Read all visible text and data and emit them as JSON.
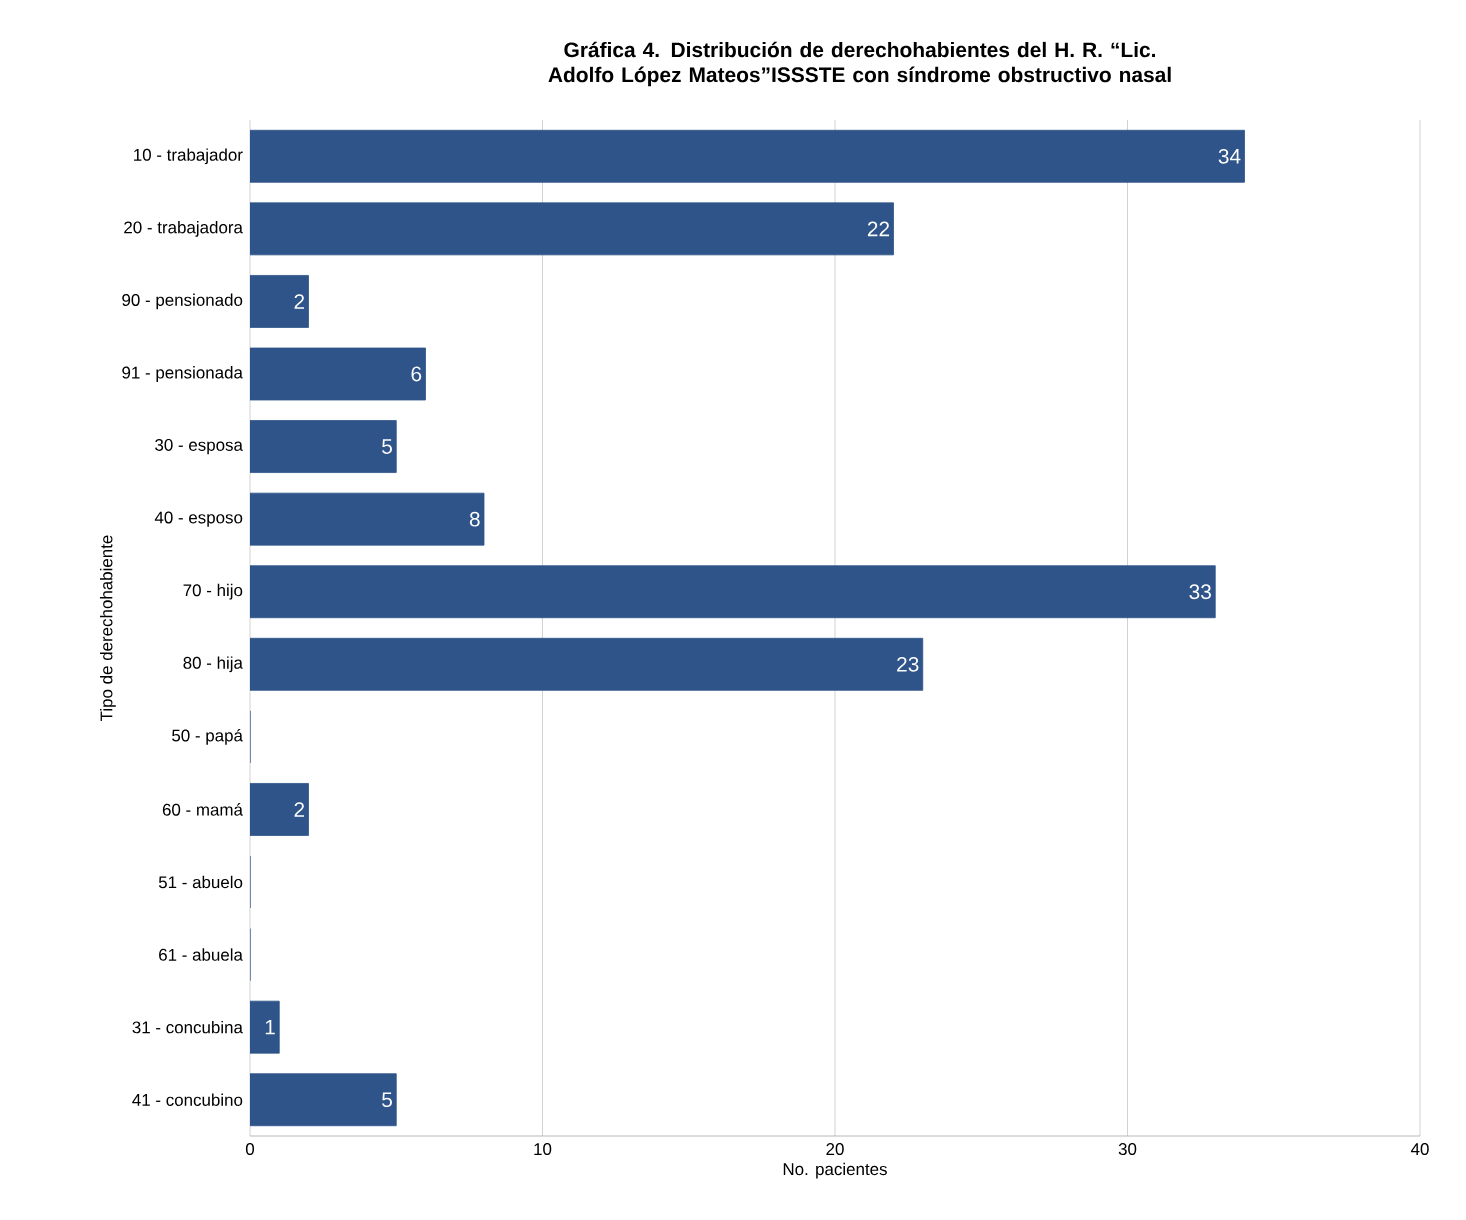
{
  "chart_data": {
    "type": "bar",
    "orientation": "horizontal",
    "title": "Gráfica 4. Distribución de derechohabientes del H. R. “Lic. Adolfo López Mateos”ISSSTE con síndrome obstructivo nasal",
    "xlabel": "No. pacientes",
    "ylabel": "Tipo de derechohabiente",
    "categories": [
      "10 - trabajador",
      "20 - trabajadora",
      "90 - pensionado",
      "91 - pensionada",
      "30 - esposa",
      "40 - esposo",
      "70 - hijo",
      "80 - hija",
      "50 - papá",
      "60 - mamá",
      "51 - abuelo",
      "61 - abuela",
      "31 - concubina",
      "41 - concubino"
    ],
    "values": [
      34,
      22,
      2,
      6,
      5,
      8,
      33,
      23,
      0,
      2,
      0,
      0,
      1,
      5
    ],
    "value_labels": [
      "34",
      "22",
      "2",
      "6",
      "5",
      "8",
      "33",
      "23",
      null,
      "2",
      null,
      null,
      "1",
      "5"
    ],
    "color": "#2e5489",
    "xlim": [
      0,
      40
    ],
    "xticks": [
      0,
      10,
      20,
      30,
      40
    ],
    "grid": "x"
  }
}
